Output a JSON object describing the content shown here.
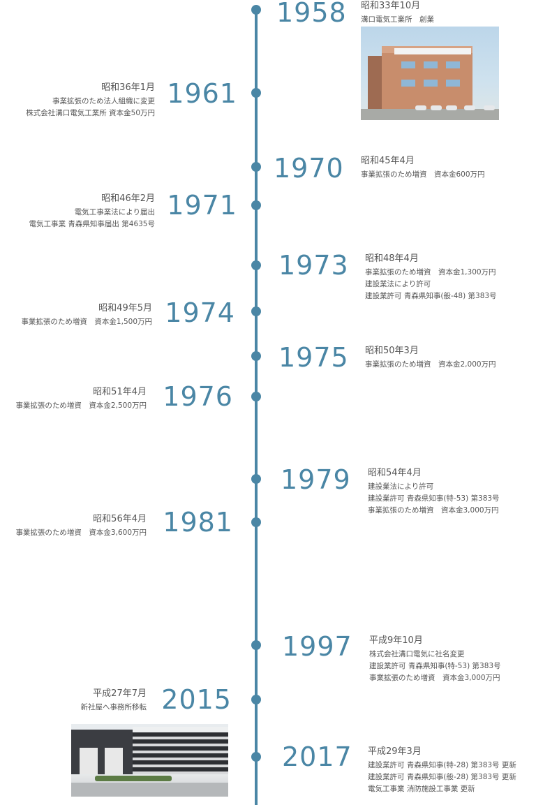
{
  "entries": [
    {
      "year": "1958",
      "date": "昭和33年10月",
      "lines": [
        "溝口電気工業所　創業"
      ]
    },
    {
      "year": "1961",
      "date": "昭和36年1月",
      "lines": [
        "事業拡張のため法人組織に変更",
        "株式会社溝口電気工業所 資本金50万円"
      ]
    },
    {
      "year": "1970",
      "date": "昭和45年4月",
      "lines": [
        "事業拡張のため増資　資本金600万円"
      ]
    },
    {
      "year": "1971",
      "date": "昭和46年2月",
      "lines": [
        "電気工事業法により届出",
        "電気工事業 青森県知事届出 第4635号"
      ]
    },
    {
      "year": "1973",
      "date": "昭和48年4月",
      "lines": [
        "事業拡張のため増資　資本金1,300万円",
        "建設業法により許可",
        "建設業許可 青森県知事(般-48) 第383号"
      ]
    },
    {
      "year": "1974",
      "date": "昭和49年5月",
      "lines": [
        "事業拡張のため増資　資本金1,500万円"
      ]
    },
    {
      "year": "1975",
      "date": "昭和50年3月",
      "lines": [
        "事業拡張のため増資　資本金2,000万円"
      ]
    },
    {
      "year": "1976",
      "date": "昭和51年4月",
      "lines": [
        "事業拡張のため増資　資本金2,500万円"
      ]
    },
    {
      "year": "1979",
      "date": "昭和54年4月",
      "lines": [
        "建設業法により許可",
        "建設業許可 青森県知事(特-53) 第383号",
        "事業拡張のため増資　資本金3,000万円"
      ]
    },
    {
      "year": "1981",
      "date": "昭和56年4月",
      "lines": [
        "事業拡張のため増資　資本金3,600万円"
      ]
    },
    {
      "year": "1997",
      "date": "平成9年10月",
      "lines": [
        "株式会社溝口電気に社名変更",
        "建設業許可 青森県知事(特-53) 第383号",
        "事業拡張のため増資　資本金3,000万円"
      ]
    },
    {
      "year": "2015",
      "date": "平成27年7月",
      "lines": [
        "新社屋へ事務所移転"
      ]
    },
    {
      "year": "2017",
      "date": "平成29年3月",
      "lines": [
        "建設業許可 青森県知事(特-28) 第383号 更新",
        "建設業許可 青森県知事(般-28) 第383号 更新",
        "電気工事業 消防施設工事業 更新"
      ]
    }
  ],
  "photos": {
    "1958": "old-office-building-photo",
    "2015": "new-office-building-photo"
  },
  "colors": {
    "accent": "#4a86a5",
    "text": "#555555"
  }
}
